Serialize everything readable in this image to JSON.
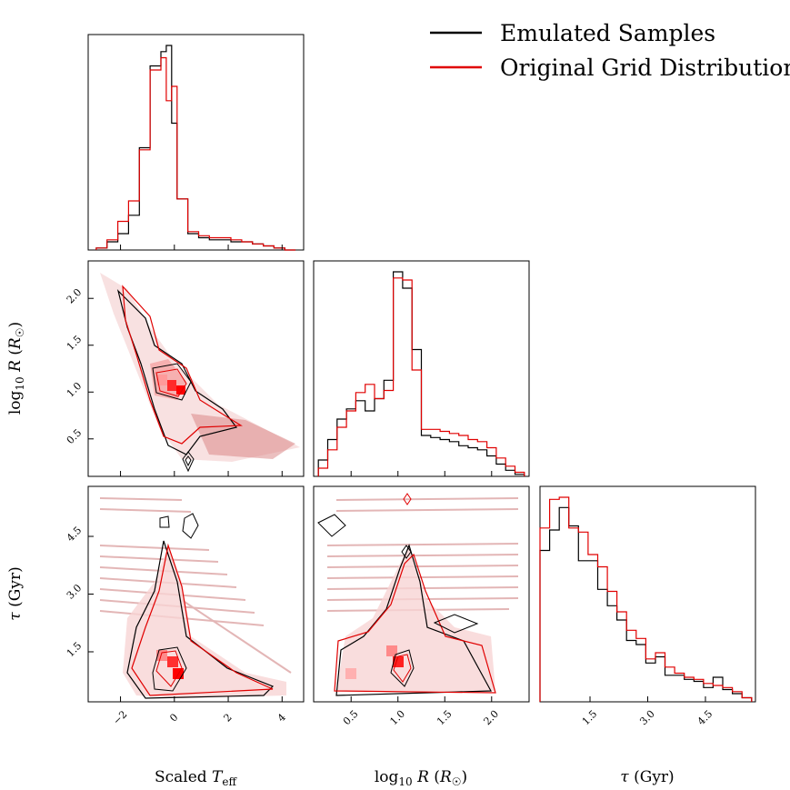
{
  "chart_data": {
    "type": "corner",
    "legend": {
      "placement": "top-right",
      "items": [
        {
          "label": "Emulated Samples",
          "color": "#000000"
        },
        {
          "label": "Original Grid Distribution",
          "color": "#e00000"
        }
      ]
    },
    "axes": {
      "teff": {
        "label": "Scaled T_eff",
        "ticks": [
          -2,
          0,
          2,
          4
        ],
        "range": [
          -3.2,
          4.8
        ]
      },
      "logr": {
        "label": "log10 R (R☉)",
        "ticks": [
          0.5,
          1.0,
          1.5,
          2.0
        ],
        "range": [
          0.1,
          2.4
        ]
      },
      "tau": {
        "label": "τ (Gyr)",
        "ticks": [
          1.5,
          3.0,
          4.5
        ],
        "range": [
          0.2,
          5.8
        ]
      }
    },
    "histograms": {
      "teff": {
        "edges": [
          -2.9,
          -2.5,
          -2.1,
          -1.7,
          -1.3,
          -0.9,
          -0.5,
          -0.3,
          -0.1,
          0.1,
          0.3,
          0.5,
          0.9,
          1.3,
          1.7,
          2.1,
          2.5,
          2.9,
          3.3,
          3.7,
          4.1,
          4.5
        ],
        "emulated": [
          0.01,
          0.04,
          0.08,
          0.17,
          0.5,
          0.9,
          0.97,
          1.0,
          0.62,
          0.25,
          0.25,
          0.08,
          0.06,
          0.05,
          0.05,
          0.04,
          0.04,
          0.03,
          0.02,
          0.01,
          0.0
        ],
        "original": [
          0.01,
          0.05,
          0.14,
          0.24,
          0.49,
          0.88,
          0.94,
          0.73,
          0.8,
          0.25,
          0.25,
          0.09,
          0.07,
          0.06,
          0.06,
          0.05,
          0.04,
          0.03,
          0.02,
          0.01,
          0.0
        ]
      },
      "logr": {
        "edges": [
          0.15,
          0.25,
          0.35,
          0.45,
          0.55,
          0.65,
          0.75,
          0.85,
          0.95,
          1.05,
          1.15,
          1.25,
          1.35,
          1.45,
          1.55,
          1.65,
          1.75,
          1.85,
          1.95,
          2.05,
          2.15,
          2.25,
          2.35
        ],
        "emulated": [
          0.08,
          0.18,
          0.28,
          0.33,
          0.37,
          0.32,
          0.38,
          0.47,
          1.0,
          0.92,
          0.62,
          0.2,
          0.19,
          0.18,
          0.17,
          0.15,
          0.14,
          0.13,
          0.1,
          0.06,
          0.03,
          0.01
        ],
        "original": [
          0.04,
          0.13,
          0.24,
          0.32,
          0.41,
          0.45,
          0.38,
          0.42,
          0.97,
          0.96,
          0.52,
          0.23,
          0.23,
          0.22,
          0.21,
          0.2,
          0.18,
          0.17,
          0.14,
          0.09,
          0.05,
          0.02
        ]
      },
      "tau": {
        "edges": [
          0.2,
          0.45,
          0.7,
          0.95,
          1.2,
          1.45,
          1.7,
          1.95,
          2.2,
          2.45,
          2.7,
          2.95,
          3.2,
          3.45,
          3.7,
          3.95,
          4.2,
          4.45,
          4.7,
          4.95,
          5.2,
          5.45,
          5.7
        ],
        "emulated": [
          0.74,
          0.84,
          0.95,
          0.86,
          0.69,
          0.69,
          0.55,
          0.47,
          0.4,
          0.3,
          0.28,
          0.19,
          0.22,
          0.13,
          0.13,
          0.11,
          0.1,
          0.07,
          0.12,
          0.06,
          0.04,
          0.02
        ],
        "original": [
          0.85,
          0.99,
          1.0,
          0.85,
          0.83,
          0.72,
          0.66,
          0.54,
          0.44,
          0.35,
          0.31,
          0.21,
          0.24,
          0.17,
          0.14,
          0.12,
          0.11,
          0.09,
          0.08,
          0.07,
          0.05,
          0.02
        ]
      }
    }
  }
}
